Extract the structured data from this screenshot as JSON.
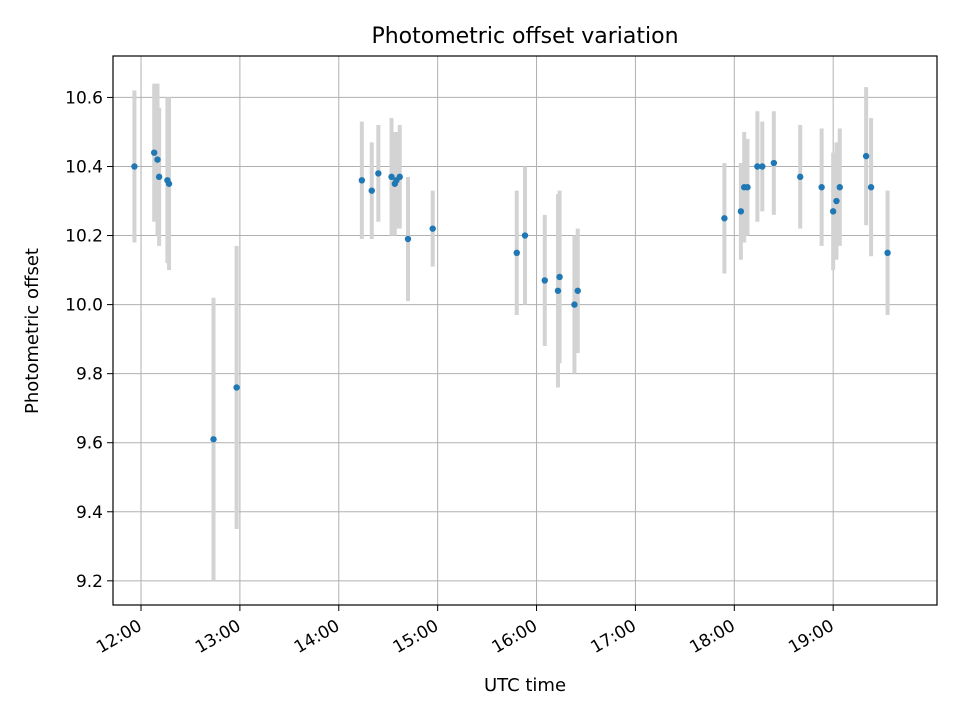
{
  "chart_data": {
    "type": "scatter",
    "title": "Photometric offset variation",
    "xlabel": "UTC time",
    "ylabel": "Photometric offset",
    "grid": true,
    "xlim": [
      "11:43",
      "20:03"
    ],
    "ylim": [
      9.13,
      10.72
    ],
    "xticks": [
      "12:00",
      "13:00",
      "14:00",
      "15:00",
      "16:00",
      "17:00",
      "18:00",
      "19:00"
    ],
    "yticks": [
      "9.2",
      "9.4",
      "9.6",
      "9.8",
      "10.0",
      "10.2",
      "10.4",
      "10.6"
    ],
    "colors": {
      "point": "#1f77b4",
      "errorbar": "#d3d3d3",
      "grid": "#b0b0b0"
    },
    "points": [
      {
        "x": "11:56",
        "y": 10.4,
        "err": 0.22
      },
      {
        "x": "12:08",
        "y": 10.44,
        "err": 0.2
      },
      {
        "x": "12:10",
        "y": 10.42,
        "err": 0.22
      },
      {
        "x": "12:11",
        "y": 10.37,
        "err": 0.2
      },
      {
        "x": "12:16",
        "y": 10.36,
        "err": 0.24
      },
      {
        "x": "12:17",
        "y": 10.35,
        "err": 0.25
      },
      {
        "x": "12:44",
        "y": 9.61,
        "err": 0.41
      },
      {
        "x": "12:58",
        "y": 9.76,
        "err": 0.41
      },
      {
        "x": "14:14",
        "y": 10.36,
        "err": 0.17
      },
      {
        "x": "14:20",
        "y": 10.33,
        "err": 0.14
      },
      {
        "x": "14:24",
        "y": 10.38,
        "err": 0.14
      },
      {
        "x": "14:32",
        "y": 10.37,
        "err": 0.17
      },
      {
        "x": "14:34",
        "y": 10.35,
        "err": 0.15
      },
      {
        "x": "14:35",
        "y": 10.36,
        "err": 0.14
      },
      {
        "x": "14:37",
        "y": 10.37,
        "err": 0.15
      },
      {
        "x": "14:42",
        "y": 10.19,
        "err": 0.18
      },
      {
        "x": "14:57",
        "y": 10.22,
        "err": 0.11
      },
      {
        "x": "15:48",
        "y": 10.15,
        "err": 0.18
      },
      {
        "x": "15:53",
        "y": 10.2,
        "err": 0.2
      },
      {
        "x": "16:05",
        "y": 10.07,
        "err": 0.19
      },
      {
        "x": "16:13",
        "y": 10.04,
        "err": 0.28
      },
      {
        "x": "16:14",
        "y": 10.08,
        "err": 0.25
      },
      {
        "x": "16:23",
        "y": 10.0,
        "err": 0.2
      },
      {
        "x": "16:25",
        "y": 10.04,
        "err": 0.18
      },
      {
        "x": "17:54",
        "y": 10.25,
        "err": 0.16
      },
      {
        "x": "18:04",
        "y": 10.27,
        "err": 0.14
      },
      {
        "x": "18:06",
        "y": 10.34,
        "err": 0.16
      },
      {
        "x": "18:08",
        "y": 10.34,
        "err": 0.14
      },
      {
        "x": "18:14",
        "y": 10.4,
        "err": 0.16
      },
      {
        "x": "18:17",
        "y": 10.4,
        "err": 0.13
      },
      {
        "x": "18:24",
        "y": 10.41,
        "err": 0.15
      },
      {
        "x": "18:40",
        "y": 10.37,
        "err": 0.15
      },
      {
        "x": "18:53",
        "y": 10.34,
        "err": 0.17
      },
      {
        "x": "19:00",
        "y": 10.27,
        "err": 0.17
      },
      {
        "x": "19:02",
        "y": 10.3,
        "err": 0.17
      },
      {
        "x": "19:04",
        "y": 10.34,
        "err": 0.17
      },
      {
        "x": "19:20",
        "y": 10.43,
        "err": 0.2
      },
      {
        "x": "19:23",
        "y": 10.34,
        "err": 0.2
      },
      {
        "x": "19:33",
        "y": 10.15,
        "err": 0.18
      }
    ]
  }
}
